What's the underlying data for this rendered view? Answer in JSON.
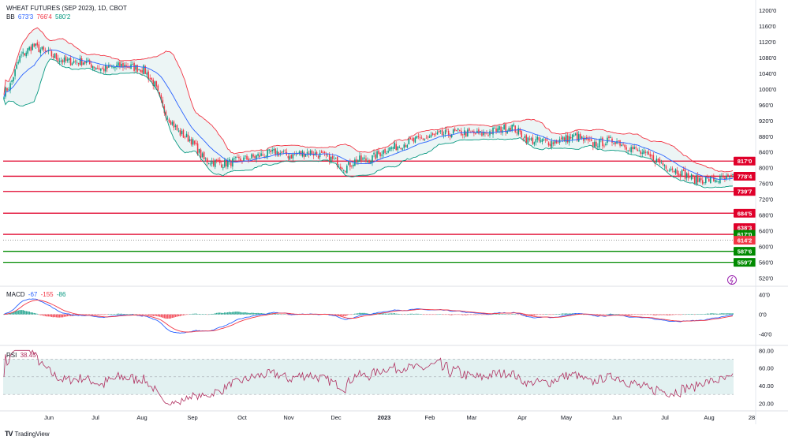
{
  "header": {
    "title": "WHEAT FUTURES (SEP 2023), 1D, CBOT",
    "bb_label": "BB",
    "bb_values": [
      "673'3",
      "766'4",
      "580'2"
    ],
    "macd_label": "MACD",
    "macd_values": [
      "-67",
      "-155",
      "-86"
    ],
    "rsi_label": "RSI",
    "rsi_value": "38.45"
  },
  "brand": {
    "name": "TradingView"
  },
  "colors": {
    "up": "#089981",
    "down": "#f23645",
    "bb_mid": "#2962ff",
    "bb_upper": "#f23645",
    "bb_lower": "#089981",
    "bb_fill": "#e6f2f2",
    "resistance": "#e0002a",
    "support": "#008a00",
    "macd": "#2962ff",
    "signal": "#f23645",
    "rsi": "#b03060",
    "rsi_band": "#e2f1f1"
  },
  "chart_data": [
    {
      "type": "candlestick",
      "name": "price",
      "y_tick_labels": [
        "1200'0",
        "1160'0",
        "1120'0",
        "1080'0",
        "1040'0",
        "1000'0",
        "960'0",
        "920'0",
        "880'0",
        "840'0",
        "800'0",
        "760'0",
        "720'0",
        "680'0",
        "640'0",
        "600'0",
        "560'0",
        "520'0"
      ],
      "y_tick_values": [
        1200,
        1160,
        1120,
        1080,
        1040,
        1000,
        960,
        920,
        880,
        840,
        800,
        760,
        720,
        680,
        640,
        600,
        560,
        520
      ],
      "ylim": [
        505,
        1210
      ],
      "x_labels": [
        "Jun",
        "Jul",
        "Aug",
        "Sep",
        "Oct",
        "Nov",
        "Dec",
        "2023",
        "Feb",
        "Mar",
        "Apr",
        "May",
        "Jun",
        "Jul",
        "Aug",
        "28"
      ],
      "close_anchor": [
        [
          0,
          990
        ],
        [
          4,
          1010
        ],
        [
          10,
          1080
        ],
        [
          18,
          1110
        ],
        [
          28,
          1090
        ],
        [
          38,
          1070
        ],
        [
          50,
          1070
        ],
        [
          62,
          1050
        ],
        [
          75,
          1060
        ],
        [
          88,
          1050
        ],
        [
          95,
          1010
        ],
        [
          100,
          950
        ],
        [
          110,
          890
        ],
        [
          118,
          870
        ],
        [
          126,
          820
        ],
        [
          138,
          810
        ],
        [
          150,
          820
        ],
        [
          160,
          830
        ],
        [
          172,
          840
        ],
        [
          180,
          830
        ],
        [
          192,
          840
        ],
        [
          205,
          825
        ],
        [
          215,
          800
        ],
        [
          222,
          820
        ],
        [
          230,
          820
        ],
        [
          240,
          845
        ],
        [
          255,
          865
        ],
        [
          270,
          880
        ],
        [
          285,
          890
        ],
        [
          300,
          885
        ],
        [
          310,
          895
        ],
        [
          320,
          905
        ],
        [
          330,
          870
        ],
        [
          345,
          865
        ],
        [
          360,
          880
        ],
        [
          370,
          860
        ],
        [
          385,
          870
        ],
        [
          395,
          850
        ],
        [
          405,
          830
        ],
        [
          415,
          810
        ],
        [
          425,
          790
        ],
        [
          435,
          770
        ],
        [
          450,
          770
        ],
        [
          465,
          775
        ],
        [
          480,
          790
        ],
        [
          490,
          770
        ],
        [
          500,
          775
        ],
        [
          510,
          770
        ],
        [
          520,
          775
        ],
        [
          532,
          780
        ],
        [
          545,
          780
        ],
        [
          555,
          800
        ],
        [
          565,
          800
        ],
        [
          575,
          790
        ],
        [
          585,
          770
        ],
        [
          595,
          740
        ],
        [
          605,
          725
        ],
        [
          615,
          710
        ],
        [
          625,
          700
        ],
        [
          635,
          715
        ],
        [
          645,
          705
        ],
        [
          655,
          720
        ],
        [
          665,
          710
        ],
        [
          675,
          700
        ],
        [
          685,
          700
        ],
        [
          695,
          690
        ],
        [
          705,
          660
        ],
        [
          715,
          645
        ],
        [
          725,
          630
        ],
        [
          735,
          640
        ],
        [
          745,
          640
        ],
        [
          755,
          640
        ],
        [
          765,
          625
        ],
        [
          775,
          620
        ],
        [
          785,
          640
        ],
        [
          795,
          645
        ],
        [
          805,
          660
        ],
        [
          812,
          700
        ],
        [
          818,
          740
        ],
        [
          822,
          750
        ],
        [
          826,
          770
        ],
        [
          832,
          715
        ],
        [
          840,
          690
        ],
        [
          848,
          690
        ],
        [
          856,
          680
        ],
        [
          864,
          665
        ],
        [
          870,
          670
        ],
        [
          876,
          720
        ],
        [
          882,
          750
        ],
        [
          886,
          760
        ],
        [
          890,
          740
        ],
        [
          894,
          710
        ],
        [
          898,
          700
        ],
        [
          904,
          680
        ],
        [
          912,
          665
        ],
        [
          918,
          650
        ],
        [
          922,
          640
        ],
        [
          926,
          620
        ]
      ],
      "levels": [
        {
          "label": "817'0",
          "value": 817,
          "kind": "resistance"
        },
        {
          "label": "778'4",
          "value": 778.5,
          "kind": "resistance"
        },
        {
          "label": "739'7",
          "value": 739.9,
          "kind": "resistance"
        },
        {
          "label": "684'5",
          "value": 684.6,
          "kind": "resistance"
        },
        {
          "label": "638'3",
          "value": 648,
          "kind": "resistance-tag"
        },
        {
          "label": "617'0",
          "value": 631,
          "kind": "support-tag"
        },
        {
          "label": "614'2",
          "value": 616,
          "kind": "price-tag"
        },
        {
          "label": "587'6",
          "value": 587.75,
          "kind": "support"
        },
        {
          "label": "559'7",
          "value": 559.9,
          "kind": "support"
        }
      ]
    },
    {
      "type": "line",
      "name": "MACD",
      "y_tick_labels": [
        "40'0",
        "0'0",
        "-40'0"
      ],
      "y_tick_values": [
        40,
        0,
        -40
      ],
      "ylim": [
        -58,
        52
      ]
    },
    {
      "type": "line",
      "name": "RSI",
      "y_tick_labels": [
        "80.00",
        "60.00",
        "40.00",
        "20.00"
      ],
      "y_tick_values": [
        80,
        60,
        40,
        20
      ],
      "ylim": [
        14,
        83
      ],
      "band": [
        30,
        70
      ]
    }
  ]
}
